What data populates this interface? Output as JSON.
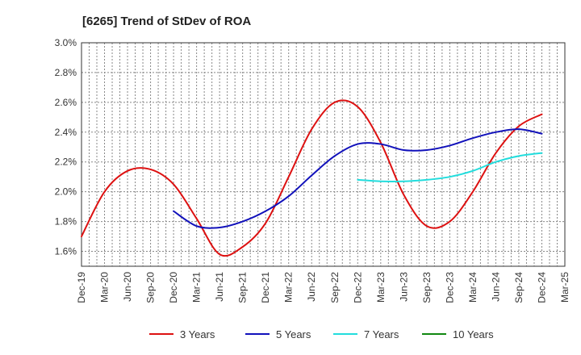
{
  "chart_data": {
    "type": "line",
    "title": "[6265]  Trend of StDev of ROA",
    "xlabel": "",
    "ylabel": "",
    "x_ticks": [
      "Dec-19",
      "Mar-20",
      "Jun-20",
      "Sep-20",
      "Dec-20",
      "Mar-21",
      "Jun-21",
      "Sep-21",
      "Dec-21",
      "Mar-22",
      "Jun-22",
      "Sep-22",
      "Dec-22",
      "Mar-23",
      "Jun-23",
      "Sep-23",
      "Dec-23",
      "Mar-24",
      "Jun-24",
      "Sep-24",
      "Dec-24",
      "Mar-25"
    ],
    "y_ticks": [
      "1.6%",
      "1.8%",
      "2.0%",
      "2.2%",
      "2.4%",
      "2.6%",
      "2.8%",
      "3.0%"
    ],
    "y_tick_values": [
      1.6,
      1.8,
      2.0,
      2.2,
      2.4,
      2.6,
      2.8,
      3.0
    ],
    "ylim": [
      1.5,
      3.0
    ],
    "grid": true,
    "legend_position": "bottom",
    "series": [
      {
        "name": "3 Years",
        "color": "#dd1111",
        "x": [
          "Dec-19",
          "Mar-20",
          "Jun-20",
          "Sep-20",
          "Dec-20",
          "Mar-21",
          "Jun-21",
          "Sep-21",
          "Dec-21",
          "Mar-22",
          "Jun-22",
          "Sep-22",
          "Dec-22",
          "Mar-23",
          "Jun-23",
          "Sep-23",
          "Dec-23",
          "Mar-24",
          "Jun-24",
          "Sep-24",
          "Dec-24"
        ],
        "values": [
          1.7,
          2.0,
          2.14,
          2.15,
          2.05,
          1.82,
          1.58,
          1.63,
          1.79,
          2.1,
          2.42,
          2.6,
          2.57,
          2.33,
          1.98,
          1.77,
          1.8,
          2.0,
          2.26,
          2.44,
          2.52
        ]
      },
      {
        "name": "5 Years",
        "color": "#1111bb",
        "x": [
          "Dec-20",
          "Mar-21",
          "Jun-21",
          "Sep-21",
          "Dec-21",
          "Mar-22",
          "Jun-22",
          "Sep-22",
          "Dec-22",
          "Mar-23",
          "Jun-23",
          "Sep-23",
          "Dec-23",
          "Mar-24",
          "Jun-24",
          "Sep-24",
          "Dec-24"
        ],
        "values": [
          1.87,
          1.77,
          1.76,
          1.8,
          1.87,
          1.97,
          2.11,
          2.24,
          2.32,
          2.32,
          2.28,
          2.28,
          2.31,
          2.36,
          2.4,
          2.42,
          2.39
        ]
      },
      {
        "name": "7 Years",
        "color": "#22dddd",
        "x": [
          "Dec-22",
          "Mar-23",
          "Jun-23",
          "Sep-23",
          "Dec-23",
          "Mar-24",
          "Jun-24",
          "Sep-24",
          "Dec-24"
        ],
        "values": [
          2.08,
          2.07,
          2.07,
          2.08,
          2.1,
          2.14,
          2.2,
          2.24,
          2.26
        ]
      },
      {
        "name": "10 Years",
        "color": "#118811",
        "x": [],
        "values": []
      }
    ]
  }
}
